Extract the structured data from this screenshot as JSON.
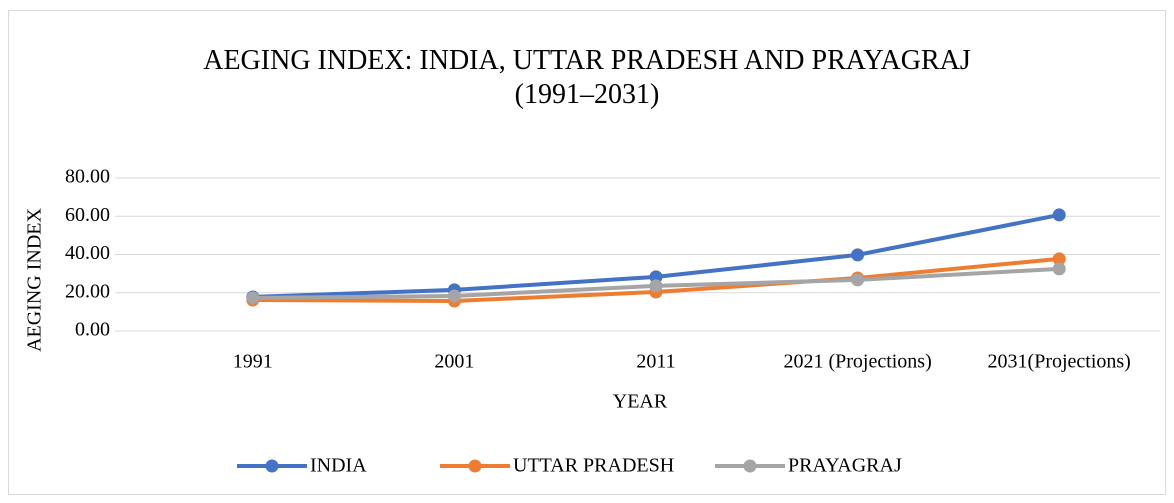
{
  "chart_data": {
    "type": "line",
    "title": "AEGING INDEX: INDIA, UTTAR PRADESH AND PRAYAGRAJ (1991–2031)",
    "x_label": "YEAR",
    "y_label": "AEGING INDEX",
    "categories": [
      "1991",
      "2001",
      "2011",
      "2021 (Projections)",
      "2031(Projections)"
    ],
    "series": [
      {
        "name": "INDIA",
        "color": "#4472c4",
        "values": [
          17.8,
          21.5,
          28.3,
          39.8,
          60.7
        ]
      },
      {
        "name": "UTTAR PRADESH",
        "color": "#ed7d31",
        "values": [
          16.2,
          15.7,
          20.4,
          27.7,
          37.7
        ]
      },
      {
        "name": "PRAYAGRAJ",
        "color": "#a5a5a5",
        "values": [
          17.3,
          18.3,
          23.6,
          26.7,
          32.5
        ]
      }
    ],
    "ylim": [
      0,
      80
    ],
    "yticks": [
      {
        "value": 0,
        "label": "0.00"
      },
      {
        "value": 20,
        "label": "20.00"
      },
      {
        "value": 40,
        "label": "40.00"
      },
      {
        "value": 60,
        "label": "60.00"
      },
      {
        "value": 80,
        "label": "80.00"
      }
    ],
    "grid": true,
    "legend": "bottom"
  }
}
